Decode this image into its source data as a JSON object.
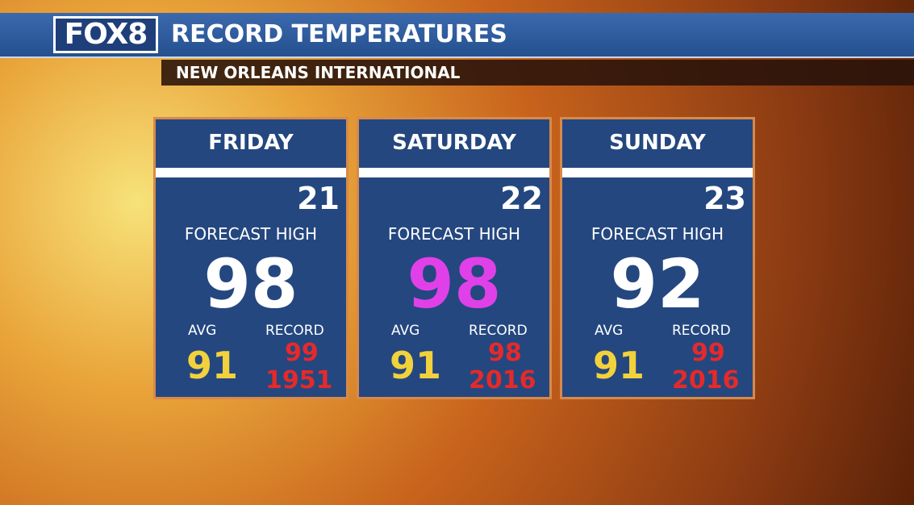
{
  "header": {
    "logo": "FOX8",
    "title": "RECORD TEMPERATURES",
    "subtitle": "NEW ORLEANS INTERNATIONAL"
  },
  "cards": [
    {
      "day": "FRIDAY",
      "date": "21",
      "label": "FORECAST HIGH",
      "high": "98",
      "high_color": "#ffffff",
      "avg_label": "AVG",
      "avg": "91",
      "record_label": "RECORD",
      "record": "99",
      "record_year": "1951"
    },
    {
      "day": "SATURDAY",
      "date": "22",
      "label": "FORECAST HIGH",
      "high": "98",
      "high_color": "#e040e8",
      "avg_label": "AVG",
      "avg": "91",
      "record_label": "RECORD",
      "record": "98",
      "record_year": "2016"
    },
    {
      "day": "SUNDAY",
      "date": "23",
      "label": "FORECAST HIGH",
      "high": "92",
      "high_color": "#ffffff",
      "avg_label": "AVG",
      "avg": "91",
      "record_label": "RECORD",
      "record": "99",
      "record_year": "2016"
    }
  ]
}
